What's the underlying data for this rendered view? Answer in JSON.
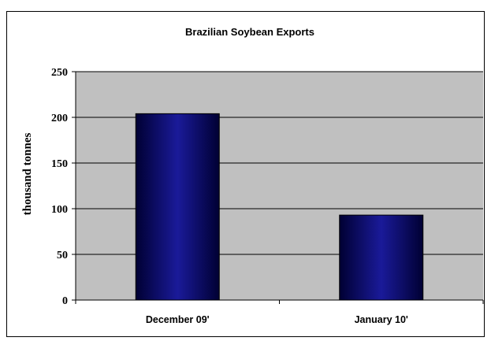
{
  "chart_data": {
    "type": "bar",
    "title": "Brazilian Soybean Exports",
    "xlabel": "",
    "ylabel": "thousand tonnes",
    "categories": [
      "December 09'",
      "January 10'"
    ],
    "values": [
      204,
      93
    ],
    "ylim": [
      0,
      250
    ],
    "yticks": [
      0,
      50,
      100,
      150,
      200,
      250
    ],
    "grid": true,
    "legend": "none",
    "colors": {
      "plot_background": "#c0c0c0",
      "bar_dark": "#000033",
      "bar_mid": "#1a1a99",
      "gridline": "#000000"
    }
  }
}
